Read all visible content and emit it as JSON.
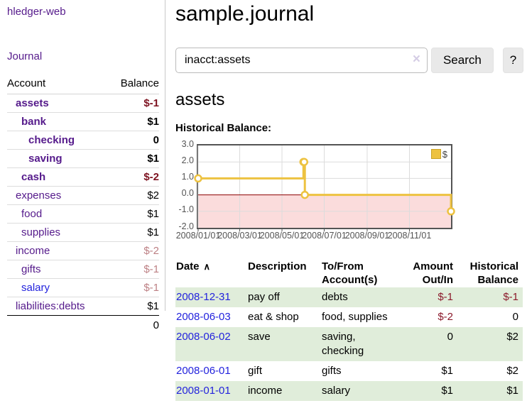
{
  "app": {
    "title": "hledger-web",
    "nav_journal": "Journal"
  },
  "colors": {
    "link_purple": "#551a8b",
    "link_blue": "#2323dd",
    "negative_strong": "#7d1220",
    "negative_soft": "#bd8084",
    "negative_table": "#8b1a2b",
    "row_stripe_green": "#e0edda",
    "series_yellow": "#edc240"
  },
  "sidebar": {
    "account_header": "Account",
    "balance_header": "Balance",
    "accounts": [
      {
        "name": "assets",
        "balance": "$-1",
        "indent": 1,
        "bold": true,
        "negative": "strong"
      },
      {
        "name": "bank",
        "balance": "$1",
        "indent": 2,
        "bold": true,
        "negative": null
      },
      {
        "name": "checking",
        "balance": "0",
        "indent": 3,
        "bold": true,
        "negative": null
      },
      {
        "name": "saving",
        "balance": "$1",
        "indent": 3,
        "bold": true,
        "negative": null
      },
      {
        "name": "cash",
        "balance": "$-2",
        "indent": 2,
        "bold": true,
        "negative": "strong"
      },
      {
        "name": "expenses",
        "balance": "$2",
        "indent": 1,
        "bold": false,
        "negative": null
      },
      {
        "name": "food",
        "balance": "$1",
        "indent": 2,
        "bold": false,
        "negative": null
      },
      {
        "name": "supplies",
        "balance": "$1",
        "indent": 2,
        "bold": false,
        "negative": null
      },
      {
        "name": "income",
        "balance": "$-2",
        "indent": 1,
        "bold": false,
        "negative": "soft"
      },
      {
        "name": "gifts",
        "balance": "$-1",
        "indent": 2,
        "bold": false,
        "negative": "soft"
      },
      {
        "name": "salary",
        "balance": "$-1",
        "indent": 2,
        "bold": false,
        "negative": "soft",
        "unvisited": true
      },
      {
        "name": "liabilities:debts",
        "balance": "$1",
        "indent": 1,
        "bold": false,
        "negative": null,
        "last": true
      }
    ],
    "total": "0"
  },
  "main": {
    "title": "sample.journal",
    "search": {
      "value": "inacct:assets",
      "clear_icon": "×",
      "search_button": "Search",
      "help_button": "?"
    },
    "account_heading": "assets",
    "chart_title": "Historical Balance:"
  },
  "chart_data": {
    "type": "line",
    "step": "after",
    "title": "Historical Balance",
    "legend_label": "$",
    "legend_position": "top-right",
    "series": [
      {
        "name": "$",
        "color": "#edc240",
        "points": [
          [
            "2008-01-01",
            1
          ],
          [
            "2008-06-01",
            2
          ],
          [
            "2008-06-02",
            2
          ],
          [
            "2008-06-03",
            0
          ],
          [
            "2008-12-31",
            -1
          ]
        ]
      }
    ],
    "ylim": [
      -2,
      3
    ],
    "yticks": [
      "3.0",
      "2.0",
      "1.0",
      "0.0",
      "-1.0",
      "-2.0"
    ],
    "xticks": [
      "2008/01/01",
      "2008/03/01",
      "2008/05/01",
      "2008/07/01",
      "2008/09/01",
      "2008/11/01"
    ],
    "grid": true,
    "gridline_color": "#dcdcdc",
    "negative_region_color": "#fbdcdc",
    "zero_line_color": "#8b0000",
    "plot_border_color": "#545454"
  },
  "register": {
    "headers": {
      "date": "Date",
      "description": "Description",
      "accounts": "To/From Account(s)",
      "amount": "Amount Out/In",
      "balance": "Historical Balance"
    },
    "sort_icon": "∧",
    "rows": [
      {
        "date": "2008-12-31",
        "description": "pay off",
        "accounts": "debts",
        "amount": "$-1",
        "balance": "$-1"
      },
      {
        "date": "2008-06-03",
        "description": "eat & shop",
        "accounts": "food, supplies",
        "amount": "$-2",
        "balance": "0"
      },
      {
        "date": "2008-06-02",
        "description": "save",
        "accounts": "saving, checking",
        "amount": "0",
        "balance": "$2"
      },
      {
        "date": "2008-06-01",
        "description": "gift",
        "accounts": "gifts",
        "amount": "$1",
        "balance": "$2"
      },
      {
        "date": "2008-01-01",
        "description": "income",
        "accounts": "salary",
        "amount": "$1",
        "balance": "$1"
      }
    ]
  }
}
